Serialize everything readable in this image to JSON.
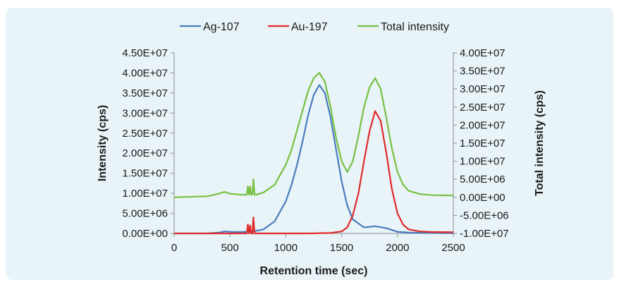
{
  "chart_data": {
    "type": "line",
    "title": "",
    "xlabel": "Retention time (sec)",
    "ylabel": "Intensity (cps)",
    "y2label": "Total intensity (cps)",
    "xlim": [
      0,
      2500
    ],
    "ylim": [
      0,
      45000000
    ],
    "y2lim": [
      -10000000,
      40000000
    ],
    "x_ticks": [
      "0",
      "500",
      "1000",
      "1500",
      "2000",
      "2500"
    ],
    "y_ticks": [
      "0.00E+00",
      "5.00E+06",
      "1.00E+07",
      "1.50E+07",
      "2.00E+07",
      "2.50E+07",
      "3.00E+07",
      "3.50E+07",
      "4.00E+07",
      "4.50E+07"
    ],
    "y2_ticks": [
      "-1.00E+07",
      "-5.00E+06",
      "0.00E+00",
      "5.00E+06",
      "1.00E+07",
      "1.50E+07",
      "2.00E+07",
      "2.50E+07",
      "3.00E+07",
      "3.50E+07",
      "4.00E+07"
    ],
    "legend_position": "top",
    "grid": false,
    "series": [
      {
        "name": "Ag-107",
        "color": "#4a7bbf",
        "axis": "left",
        "x": [
          0,
          300,
          400,
          450,
          500,
          550,
          600,
          700,
          800,
          900,
          1000,
          1050,
          1100,
          1150,
          1200,
          1250,
          1300,
          1350,
          1400,
          1450,
          1500,
          1550,
          1600,
          1700,
          1800,
          1900,
          2000,
          2100,
          2200,
          2300,
          2400,
          2500
        ],
        "values": [
          0,
          0,
          200000,
          500000,
          400000,
          350000,
          350000,
          450000,
          1000000,
          3000000,
          8000000,
          12000000,
          17000000,
          23000000,
          29500000,
          34500000,
          37000000,
          35000000,
          29000000,
          21000000,
          13000000,
          7000000,
          3500000,
          1500000,
          1800000,
          1300000,
          400000,
          200000,
          150000,
          100000,
          80000,
          50000
        ]
      },
      {
        "name": "Au-197",
        "color": "#e02a2a",
        "axis": "left",
        "x": [
          0,
          500,
          650,
          660,
          670,
          680,
          690,
          700,
          710,
          720,
          730,
          800,
          1000,
          1200,
          1400,
          1500,
          1550,
          1600,
          1650,
          1700,
          1750,
          1800,
          1850,
          1900,
          1950,
          2000,
          2050,
          2100,
          2200,
          2300,
          2500
        ],
        "values": [
          0,
          0,
          0,
          2200000,
          0,
          2000000,
          0,
          0,
          4000000,
          0,
          0,
          0,
          0,
          0,
          100000,
          500000,
          1500000,
          4500000,
          10000000,
          18000000,
          25500000,
          30500000,
          28000000,
          20000000,
          11000000,
          5000000,
          2200000,
          1000000,
          500000,
          350000,
          300000
        ]
      },
      {
        "name": "Total intensity",
        "color": "#78c043",
        "axis": "right",
        "x": [
          0,
          300,
          400,
          450,
          500,
          600,
          650,
          660,
          670,
          680,
          690,
          700,
          710,
          720,
          730,
          800,
          900,
          1000,
          1050,
          1100,
          1150,
          1200,
          1250,
          1300,
          1350,
          1400,
          1450,
          1500,
          1550,
          1600,
          1650,
          1700,
          1750,
          1800,
          1850,
          1900,
          1950,
          2000,
          2050,
          2100,
          2200,
          2300,
          2500
        ],
        "values": [
          0,
          300000,
          1000000,
          1500000,
          1000000,
          700000,
          700000,
          3000000,
          700000,
          3000000,
          700000,
          700000,
          5000000,
          700000,
          700000,
          1300000,
          3500000,
          9000000,
          13000000,
          18500000,
          24000000,
          29500000,
          33000000,
          34500000,
          32000000,
          25000000,
          16500000,
          10000000,
          7000000,
          10000000,
          17000000,
          25000000,
          30500000,
          33000000,
          30000000,
          22000000,
          13500000,
          7000000,
          3500000,
          1800000,
          900000,
          600000,
          500000
        ]
      }
    ]
  }
}
